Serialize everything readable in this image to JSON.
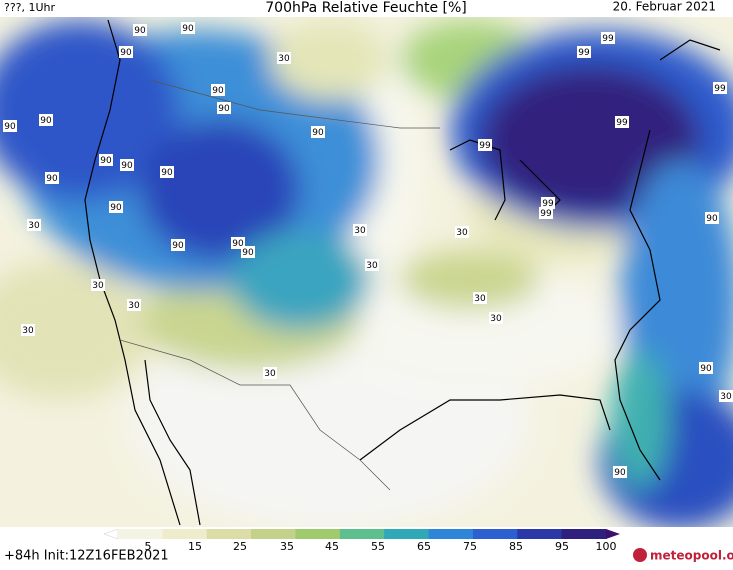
{
  "header": {
    "left": "???, 1Uhr",
    "title": "700hPa Relative Feuchte [%]",
    "date": "20. Februar 2021"
  },
  "contour_labels": [
    "90",
    "90",
    "90",
    "90",
    "90",
    "90",
    "30",
    "90",
    "90",
    "90",
    "90",
    "90",
    "90",
    "90",
    "90",
    "90",
    "90",
    "30",
    "30",
    "30",
    "30",
    "30",
    "30",
    "30",
    "30",
    "30",
    "99",
    "99",
    "99",
    "99",
    "99",
    "99",
    "99",
    "90",
    "90",
    "90",
    "30",
    "30"
  ],
  "colorbar": {
    "ticks": [
      "5",
      "15",
      "25",
      "35",
      "45",
      "55",
      "65",
      "75",
      "85",
      "95",
      "100"
    ],
    "colors": [
      "#ffffff",
      "#f4f4e4",
      "#efeccb",
      "#dcdca6",
      "#c3d18a",
      "#9fcb6e",
      "#5dbf8d",
      "#2fa8b8",
      "#2f86d8",
      "#2c5fd2",
      "#2a38a8",
      "#30207e",
      "#3d0f6c"
    ]
  },
  "footer": {
    "run": "+84h Init:12Z16FEB2021",
    "logo": "meteopool.org"
  }
}
